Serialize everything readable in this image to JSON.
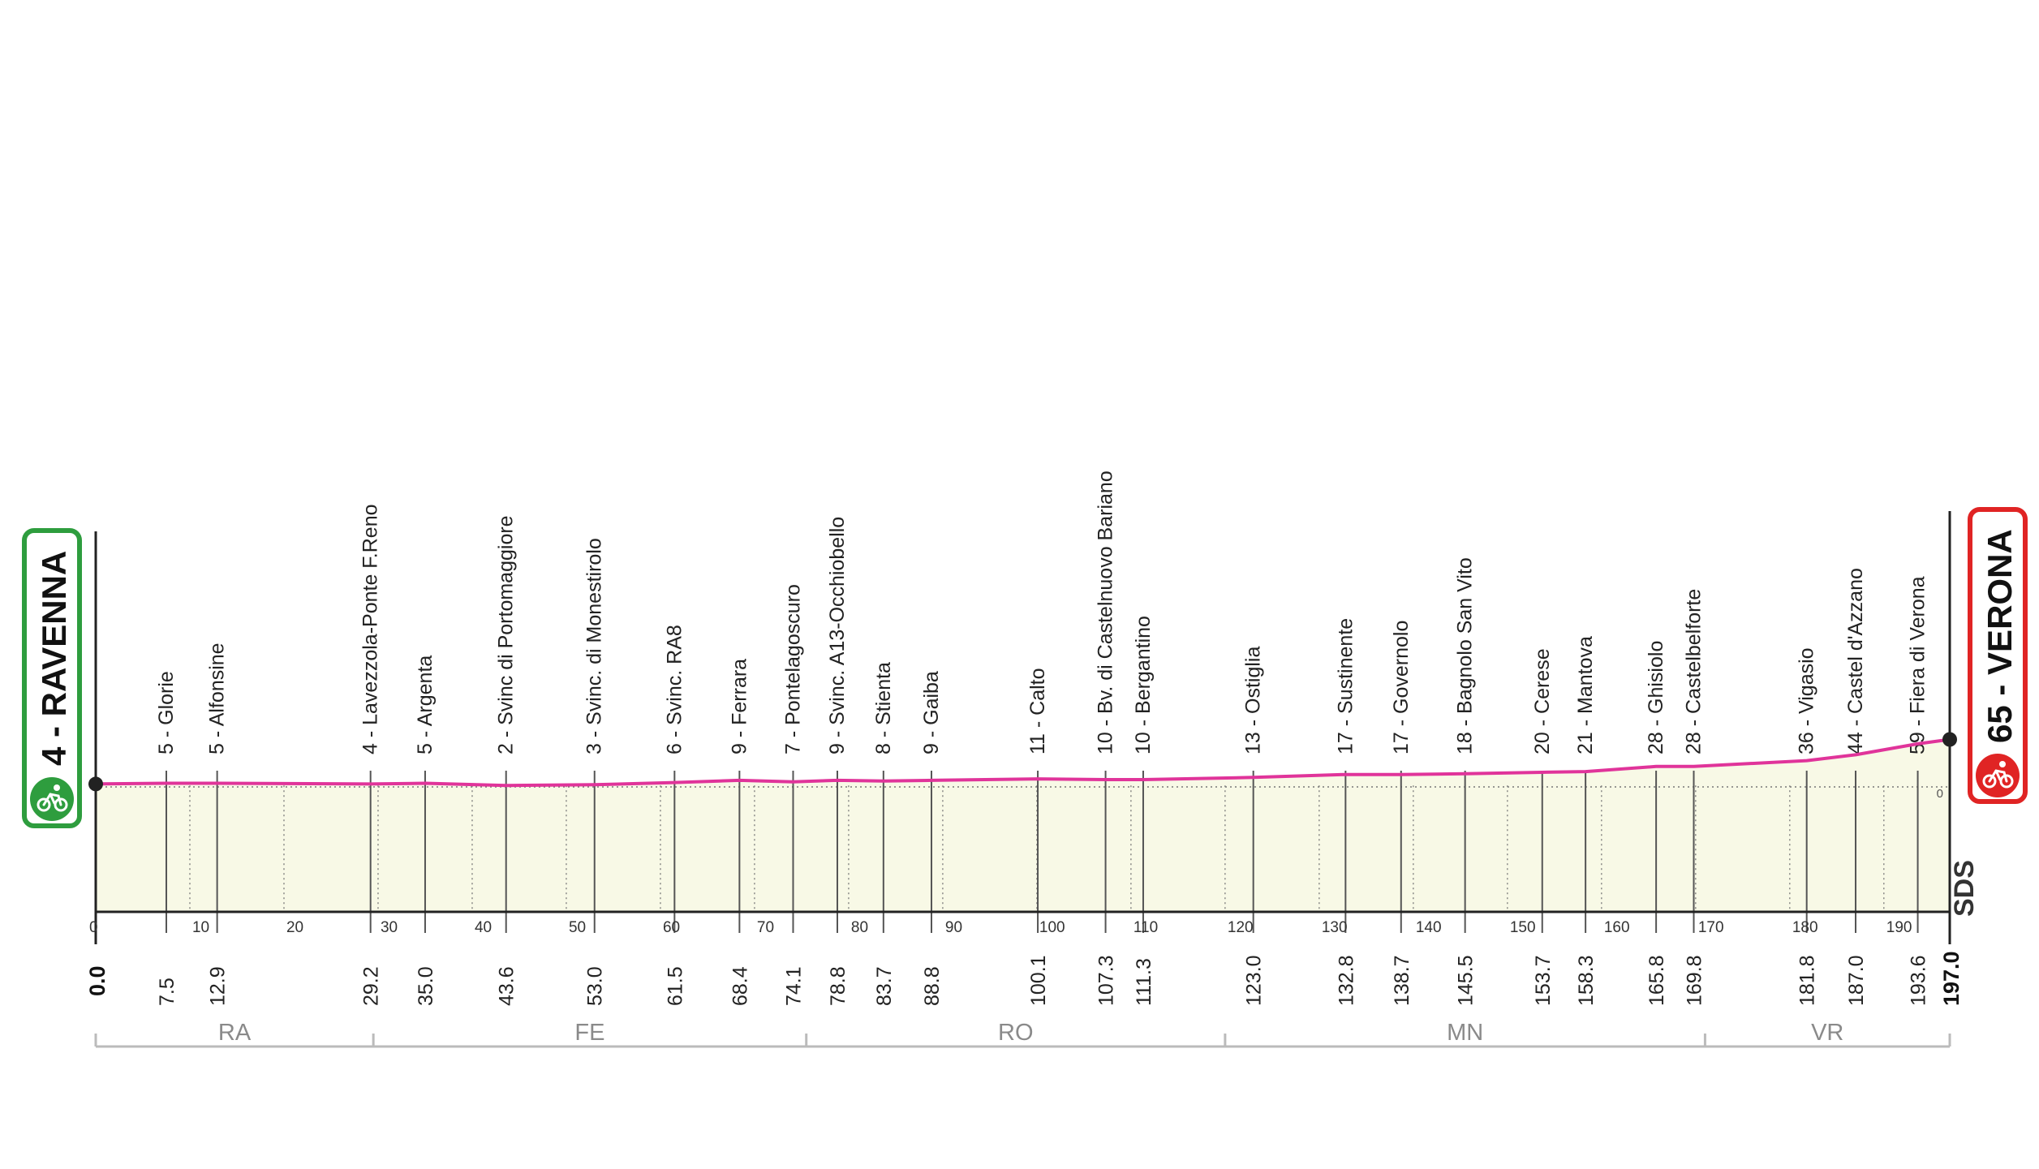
{
  "colors": {
    "profile_line": "#e0349a",
    "area_fill": "#f8f9e6",
    "start_box": "#2e9d3e",
    "finish_box": "#e02424",
    "axis": "#222222",
    "waypoint_line": "#555555",
    "grid_dotted": "#777777",
    "province_line": "#bbbbbb",
    "province_text": "#8a8a8a"
  },
  "start": {
    "name": "RAVENNA",
    "altitude": "4",
    "label": "4 - RAVENNA",
    "icon": "cyclist-icon"
  },
  "finish": {
    "name": "VERONA",
    "altitude": "65",
    "label": "65 - VERONA",
    "icon": "cyclist-icon"
  },
  "total_km_label": "197.0",
  "start_km_label": "0.0",
  "zero_alt_label": "0",
  "logo_text": "SDS",
  "provinces": [
    {
      "code": "RA",
      "from_km": 0,
      "to_km": 29.5
    },
    {
      "code": "FE",
      "from_km": 29.5,
      "to_km": 75.5
    },
    {
      "code": "RO",
      "from_km": 75.5,
      "to_km": 120
    },
    {
      "code": "MN",
      "from_km": 120,
      "to_km": 171
    },
    {
      "code": "VR",
      "from_km": 171,
      "to_km": 197
    }
  ],
  "chart_data": {
    "type": "area",
    "title": "",
    "xlabel": "",
    "ylabel": "",
    "xlim": [
      0,
      197
    ],
    "ylim": [
      0,
      65
    ],
    "x_ticks": [
      0,
      10,
      20,
      30,
      40,
      50,
      60,
      70,
      80,
      90,
      100,
      110,
      120,
      130,
      140,
      150,
      160,
      170,
      180,
      190
    ],
    "profile": [
      {
        "km": 0,
        "alt": 4
      },
      {
        "km": 7.5,
        "alt": 5
      },
      {
        "km": 12.9,
        "alt": 5
      },
      {
        "km": 29.2,
        "alt": 4
      },
      {
        "km": 35.0,
        "alt": 5
      },
      {
        "km": 43.6,
        "alt": 2
      },
      {
        "km": 53.0,
        "alt": 3
      },
      {
        "km": 61.5,
        "alt": 6
      },
      {
        "km": 68.4,
        "alt": 9
      },
      {
        "km": 74.1,
        "alt": 7
      },
      {
        "km": 78.8,
        "alt": 9
      },
      {
        "km": 83.7,
        "alt": 8
      },
      {
        "km": 88.8,
        "alt": 9
      },
      {
        "km": 100.1,
        "alt": 11
      },
      {
        "km": 107.3,
        "alt": 10
      },
      {
        "km": 111.3,
        "alt": 10
      },
      {
        "km": 123.0,
        "alt": 13
      },
      {
        "km": 132.8,
        "alt": 17
      },
      {
        "km": 138.7,
        "alt": 17
      },
      {
        "km": 145.5,
        "alt": 18
      },
      {
        "km": 153.7,
        "alt": 20
      },
      {
        "km": 158.3,
        "alt": 21
      },
      {
        "km": 165.8,
        "alt": 28
      },
      {
        "km": 169.8,
        "alt": 28
      },
      {
        "km": 181.8,
        "alt": 36
      },
      {
        "km": 187.0,
        "alt": 44
      },
      {
        "km": 193.6,
        "alt": 59
      },
      {
        "km": 197.0,
        "alt": 65
      }
    ],
    "waypoints": [
      {
        "km": 7.5,
        "km_label": "7.5",
        "label": "5 - Glorie"
      },
      {
        "km": 12.9,
        "km_label": "12.9",
        "label": "5 - Alfonsine"
      },
      {
        "km": 29.2,
        "km_label": "29.2",
        "label": "4 - Lavezzola-Ponte F.Reno"
      },
      {
        "km": 35.0,
        "km_label": "35.0",
        "label": "5 - Argenta"
      },
      {
        "km": 43.6,
        "km_label": "43.6",
        "label": "2 - Svinc di Portomaggiore"
      },
      {
        "km": 53.0,
        "km_label": "53.0",
        "label": "3 - Svinc. di Monestirolo"
      },
      {
        "km": 61.5,
        "km_label": "61.5",
        "label": "6 - Svinc. RA8"
      },
      {
        "km": 68.4,
        "km_label": "68.4",
        "label": "9 - Ferrara"
      },
      {
        "km": 74.1,
        "km_label": "74.1",
        "label": "7 - Pontelagoscuro"
      },
      {
        "km": 78.8,
        "km_label": "78.8",
        "label": "9 - Svinc. A13-Occhiobello"
      },
      {
        "km": 83.7,
        "km_label": "83.7",
        "label": "8 - Stienta"
      },
      {
        "km": 88.8,
        "km_label": "88.8",
        "label": "9 - Gaiba"
      },
      {
        "km": 100.1,
        "km_label": "100.1",
        "label": "11 - Calto"
      },
      {
        "km": 107.3,
        "km_label": "107.3",
        "label": "10 - Bv. di Castelnuovo Bariano"
      },
      {
        "km": 111.3,
        "km_label": "111.3",
        "label": "10 - Bergantino"
      },
      {
        "km": 123.0,
        "km_label": "123.0",
        "label": "13 - Ostiglia"
      },
      {
        "km": 132.8,
        "km_label": "132.8",
        "label": "17 - Sustinente"
      },
      {
        "km": 138.7,
        "km_label": "138.7",
        "label": "17 - Governolo"
      },
      {
        "km": 145.5,
        "km_label": "145.5",
        "label": "18 - Bagnolo San Vito"
      },
      {
        "km": 153.7,
        "km_label": "153.7",
        "label": "20 - Cerese"
      },
      {
        "km": 158.3,
        "km_label": "158.3",
        "label": "21 - Mantova"
      },
      {
        "km": 165.8,
        "km_label": "165.8",
        "label": "28 - Ghisiolo"
      },
      {
        "km": 169.8,
        "km_label": "169.8",
        "label": "28 - Castelbelforte"
      },
      {
        "km": 181.8,
        "km_label": "181.8",
        "label": "36 - Vigasio"
      },
      {
        "km": 187.0,
        "km_label": "187.0",
        "label": "44 - Castel d'Azzano"
      },
      {
        "km": 193.6,
        "km_label": "193.6",
        "label": "59 - Fiera di Verona"
      }
    ]
  }
}
